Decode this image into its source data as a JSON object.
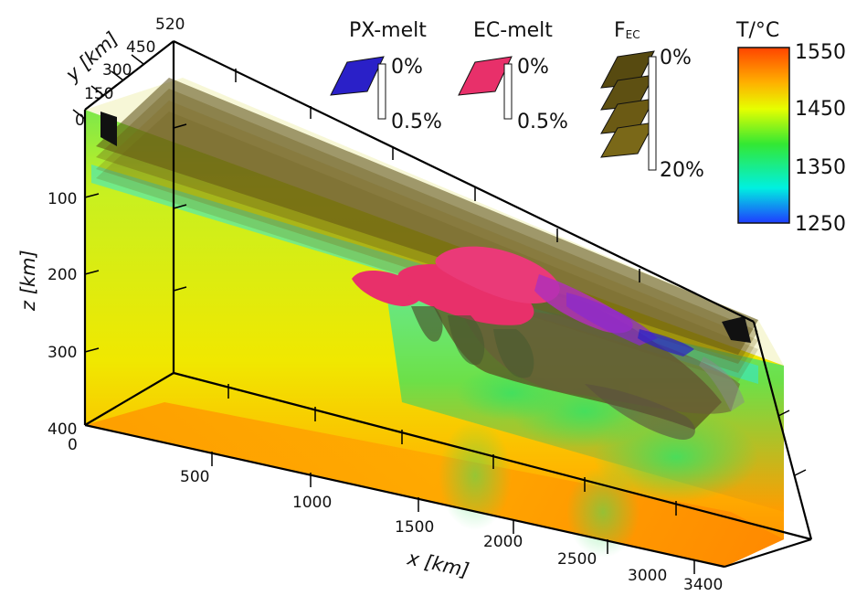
{
  "axes": {
    "x": {
      "label": "x [km]",
      "ticks": [
        "0",
        "500",
        "1000",
        "1500",
        "2000",
        "2500",
        "3000",
        "3400"
      ]
    },
    "y": {
      "label": "y [km]",
      "ticks": [
        "0",
        "150",
        "300",
        "450",
        "520"
      ]
    },
    "z": {
      "label": "z [km]",
      "ticks": [
        "100",
        "200",
        "300",
        "400"
      ]
    }
  },
  "legends": {
    "px_melt": {
      "title": "PX-melt",
      "min": "0%",
      "max": "0.5%",
      "color": "#2a20c8"
    },
    "ec_melt": {
      "title": "EC-melt",
      "min": "0%",
      "max": "0.5%",
      "color": "#e8306a"
    },
    "f_ec": {
      "title_main": "F",
      "title_sub": "EC",
      "min": "0%",
      "max": "20%",
      "color": "#6b5a14"
    },
    "temperature": {
      "title": "T/°C",
      "ticks": [
        "1550",
        "1450",
        "1350",
        "1250"
      ],
      "colors": [
        "#ff4400",
        "#ffcc00",
        "#e6ff00",
        "#33e833",
        "#00f0e0",
        "#1f3cff"
      ]
    }
  },
  "colormap": {
    "deep": "#ff8a00",
    "mid": "#e8ee00",
    "shallow": "#90ee30",
    "cold": "#30e8d8",
    "lid": "#574a10"
  }
}
